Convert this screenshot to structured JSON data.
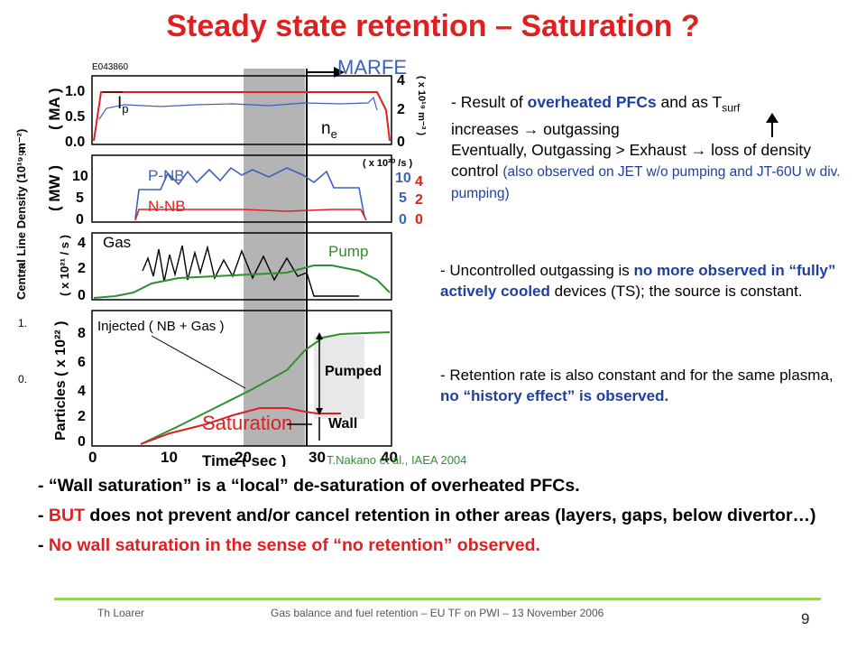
{
  "title": "Steady state retention – Saturation ?",
  "figure": {
    "shot_id": "E043860",
    "marfe_label": "MARFE",
    "y_side_label": "Central Line Density (10¹⁹ m⁻²)",
    "side_ticks": [
      "3.",
      "2.",
      "1.",
      "0."
    ],
    "panel1": {
      "ylabel": "( MA )",
      "ticks": [
        "1.0",
        "0.5",
        "0.0"
      ],
      "right_ticks": [
        "4",
        "2",
        "0"
      ],
      "right_label": "( x 10¹⁹ m⁻³ )",
      "ip": "I",
      "ip_sub": "p",
      "ne": "n",
      "ne_sub": "e"
    },
    "panel2": {
      "ylabel": "( MW )",
      "ticks": [
        "10",
        "5",
        "0"
      ],
      "right_ticks_blue": [
        "10",
        "5",
        "0"
      ],
      "right_ticks_red": [
        "4",
        "2",
        "0"
      ],
      "right_label": "( x 10²⁰ /s )",
      "pnb": "P-NB",
      "nnb": "N-NB"
    },
    "panel3": {
      "ylabel": "( x 10²¹ / s )",
      "ticks": [
        "4",
        "2",
        "0"
      ],
      "gas": "Gas",
      "pump": "Pump"
    },
    "panel4": {
      "ylabel": "Particles ( x 10²² )",
      "ticks": [
        "8",
        "6",
        "4",
        "2",
        "0"
      ],
      "injected": "Injected ( NB + Gas )",
      "pumped": "Pumped",
      "wall": "Wall",
      "saturation": "Saturation"
    },
    "xaxis": {
      "label": "Time ( sec )",
      "ticks": [
        "0",
        "10",
        "20",
        "30",
        "40"
      ]
    }
  },
  "caption": "T.Nakano et al., IAEA 2004",
  "bullet1": {
    "p1": "- Result of ",
    "p2": "overheated PFCs",
    "p3": " and as T",
    "p3_sub": "surf",
    "p4": "increases ",
    "p5": " outgassing",
    "p6": "Eventually, Outgassing > Exhaust ",
    "p7": " loss of density control ",
    "p8": "(also observed on JET w/o pumping and JT-60U w div. pumping)"
  },
  "bullet2": {
    "p1": "- Uncontrolled outgassing is ",
    "p2": "no more observed in “fully” actively cooled",
    "p3": " devices (TS); the source is constant."
  },
  "bullet3": {
    "p1": "- Retention rate is also constant and for the same plasma, ",
    "p2": "no “history effect” is observed."
  },
  "bottom": {
    "l1": "- “Wall saturation” is a “local” de-saturation of overheated PFCs.",
    "l2a": "- ",
    "l2b": "BUT",
    "l2c": " does not prevent and/or cancel retention in other areas (layers, gaps, below divertor…)",
    "l3a": "- ",
    "l3b": "No wall saturation in the sense of “no retention” observed."
  },
  "footer": {
    "author": "Th Loarer",
    "event": "Gas balance and fuel retention – EU TF on PWI – 13 November 2006",
    "page": "9"
  },
  "arrow_symbol": "→",
  "colors": {
    "title": "#e02020",
    "accent_blue": "#1f3fa0",
    "caption": "#2f8f2f",
    "footer_line": "#9bd45a"
  }
}
